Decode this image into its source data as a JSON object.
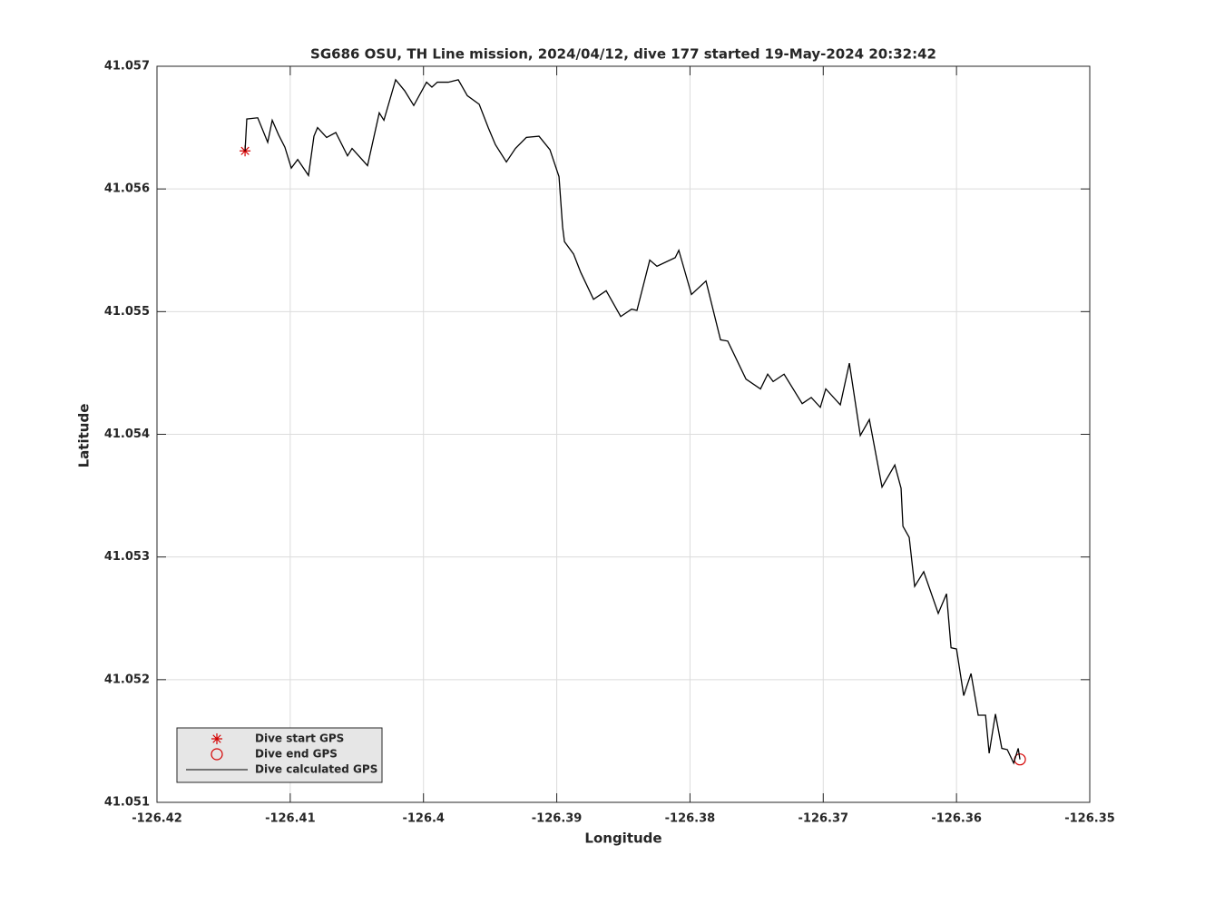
{
  "chart_data": {
    "type": "line",
    "title": "SG686 OSU, TH Line mission, 2024/04/12, dive 177 started 19-May-2024 20:32:42",
    "xlabel": "Longitude",
    "ylabel": "Latitude",
    "xlim": [
      -126.42,
      -126.35
    ],
    "ylim": [
      41.051,
      41.057
    ],
    "xticks": [
      -126.42,
      -126.41,
      -126.4,
      -126.39,
      -126.38,
      -126.37,
      -126.36,
      -126.35
    ],
    "yticks": [
      41.051,
      41.052,
      41.053,
      41.054,
      41.055,
      41.056,
      41.057
    ],
    "grid": true,
    "legend": "southwest",
    "series": [
      {
        "name": "Dive start GPS",
        "color": "#d40000",
        "marker": "star",
        "x": [
          -126.41339
        ],
        "values": [
          41.05631
        ]
      },
      {
        "name": "Dive end GPS",
        "color": "#d40000",
        "marker": "circle",
        "x": [
          -126.35524
        ],
        "values": [
          41.05135
        ]
      },
      {
        "name": "Dive calculated GPS",
        "color": "#000000",
        "x": [
          -126.41339,
          -126.41326,
          -126.41244,
          -126.41169,
          -126.41135,
          -126.41087,
          -126.4104,
          -126.40992,
          -126.40944,
          -126.40863,
          -126.40822,
          -126.40795,
          -126.40727,
          -126.40658,
          -126.4057,
          -126.40536,
          -126.4042,
          -126.40332,
          -126.40297,
          -126.40209,
          -126.40141,
          -126.40073,
          -126.39977,
          -126.39937,
          -126.39896,
          -126.39814,
          -126.39739,
          -126.39671,
          -126.39582,
          -126.39514,
          -126.3946,
          -126.39378,
          -126.3931,
          -126.39228,
          -126.39133,
          -126.39051,
          -126.38983,
          -126.38956,
          -126.38942,
          -126.38874,
          -126.3882,
          -126.38724,
          -126.38629,
          -126.3852,
          -126.38438,
          -126.38398,
          -126.38302,
          -126.38248,
          -126.38111,
          -126.38084,
          -126.37989,
          -126.3788,
          -126.37771,
          -126.37717,
          -126.3758,
          -126.37471,
          -126.37417,
          -126.37376,
          -126.37294,
          -126.37158,
          -126.3709,
          -126.37022,
          -126.36981,
          -126.36872,
          -126.36804,
          -126.36722,
          -126.36654,
          -126.36559,
          -126.36463,
          -126.36416,
          -126.36402,
          -126.36355,
          -126.36314,
          -126.36246,
          -126.36137,
          -126.36075,
          -126.36041,
          -126.36,
          -126.35946,
          -126.35891,
          -126.35837,
          -126.35782,
          -126.35755,
          -126.35708,
          -126.3566,
          -126.35619,
          -126.35571,
          -126.35537,
          -126.35524
        ],
        "values": [
          41.05631,
          41.05657,
          41.05658,
          41.05638,
          41.05656,
          41.05644,
          41.05634,
          41.05617,
          41.05624,
          41.05611,
          41.05643,
          41.0565,
          41.05642,
          41.05646,
          41.05627,
          41.05633,
          41.05619,
          41.05662,
          41.05656,
          41.05689,
          41.0568,
          41.05668,
          41.05687,
          41.05683,
          41.05687,
          41.05687,
          41.05689,
          41.05676,
          41.05669,
          41.0565,
          41.05636,
          41.05622,
          41.05633,
          41.05642,
          41.05643,
          41.05632,
          41.0561,
          41.05569,
          41.05557,
          41.05547,
          41.05532,
          41.0551,
          41.05517,
          41.05496,
          41.05502,
          41.05501,
          41.05542,
          41.05537,
          41.05544,
          41.0555,
          41.05514,
          41.05525,
          41.05477,
          41.05476,
          41.05445,
          41.05437,
          41.05449,
          41.05443,
          41.05449,
          41.05425,
          41.0543,
          41.05422,
          41.05437,
          41.05424,
          41.05458,
          41.05399,
          41.05412,
          41.05357,
          41.05375,
          41.05356,
          41.05325,
          41.05316,
          41.05276,
          41.05288,
          41.05254,
          41.0527,
          41.05226,
          41.05225,
          41.05187,
          41.05205,
          41.05171,
          41.05171,
          41.0514,
          41.05172,
          41.05144,
          41.05143,
          41.05132,
          41.05144,
          41.05135
        ]
      }
    ]
  }
}
